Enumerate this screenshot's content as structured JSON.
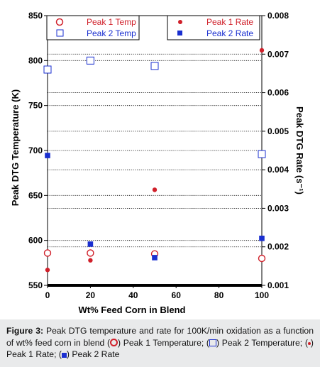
{
  "chart_data": {
    "type": "scatter",
    "x": [
      0,
      20,
      50,
      100
    ],
    "xlabel": "Wt% Feed Corn in Blend",
    "xlim": [
      0,
      100
    ],
    "xticks": [
      "0",
      "20",
      "40",
      "60",
      "80",
      "100"
    ],
    "ylabel": "Peak DTG Temperature (K)",
    "ylim": [
      550,
      850
    ],
    "yticks": [
      "550",
      "600",
      "650",
      "700",
      "750",
      "800",
      "850"
    ],
    "y2label": "Peak DTG Rate (s⁻¹)",
    "y2lim": [
      0.001,
      0.008
    ],
    "y2ticks": [
      "0.001",
      "0.002",
      "0.003",
      "0.004",
      "0.005",
      "0.006",
      "0.007",
      "0.008"
    ],
    "grid": "dotted horizontal",
    "series": [
      {
        "name": "Peak 1 Temp",
        "axis": "left",
        "marker": "open-circle",
        "color": "#d0202a",
        "x": [
          0,
          20,
          50,
          100
        ],
        "values": [
          586,
          586,
          585,
          580
        ]
      },
      {
        "name": "Peak 2 Temp",
        "axis": "left",
        "marker": "open-square",
        "color": "#1a2fd0",
        "x": [
          0,
          20,
          50,
          100
        ],
        "values": [
          790,
          800,
          794,
          696
        ]
      },
      {
        "name": "Peak 1 Rate",
        "axis": "right",
        "marker": "filled-circle",
        "color": "#d0202a",
        "x": [
          0,
          20,
          50,
          100
        ],
        "values": [
          0.0014,
          0.00165,
          0.00348,
          0.0071
        ]
      },
      {
        "name": "Peak 2 Rate",
        "axis": "right",
        "marker": "filled-square",
        "color": "#1a2fd0",
        "x": [
          0,
          20,
          50,
          100
        ],
        "values": [
          0.00437,
          0.00207,
          0.00172,
          0.00222
        ]
      }
    ],
    "legends": {
      "left": [
        "Peak 1 Temp",
        "Peak 2 Temp"
      ],
      "right": [
        "Peak 1 Rate",
        "Peak 2 Rate"
      ]
    }
  },
  "caption": {
    "label": "Figure 3:",
    "text_1": " Peak DTG temperature and rate for 100K/min oxidation as a function of wt% feed corn in blend (",
    "text_2": ") Peak 1 Temperature; (",
    "text_3": ") Peak 2 Temperature; (",
    "text_4": ") Peak 1 Rate; (",
    "text_5": ") Peak 2 Rate"
  },
  "colors": {
    "peak1": "#d0202a",
    "peak2": "#1a2fd0",
    "caption_bg": "#e9eaeb"
  }
}
